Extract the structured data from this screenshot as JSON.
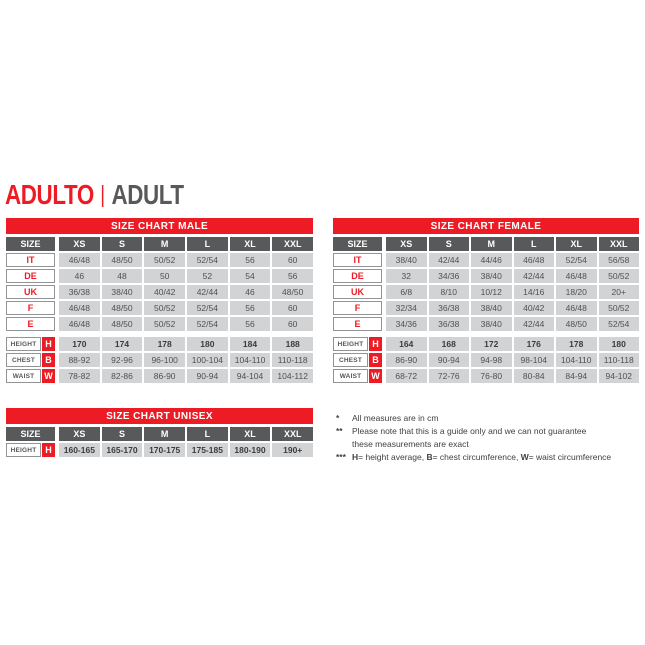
{
  "page": {
    "title_primary": "ADULTO",
    "title_separator": "|",
    "title_secondary": "ADULT"
  },
  "colors": {
    "red": "#ed1c24",
    "header_gray": "#58595b",
    "cell_gray": "#d1d3d4",
    "label_border": "#919396"
  },
  "tables": {
    "male": {
      "title": "SIZE CHART MALE",
      "size_header": "SIZE",
      "columns": [
        "XS",
        "S",
        "M",
        "L",
        "XL",
        "XXL"
      ],
      "size_rows": [
        {
          "label": "IT",
          "values": [
            "46/48",
            "48/50",
            "50/52",
            "52/54",
            "56",
            "60"
          ]
        },
        {
          "label": "DE",
          "values": [
            "46",
            "48",
            "50",
            "52",
            "54",
            "56"
          ]
        },
        {
          "label": "UK",
          "values": [
            "36/38",
            "38/40",
            "40/42",
            "42/44",
            "46",
            "48/50"
          ]
        },
        {
          "label": "F",
          "values": [
            "46/48",
            "48/50",
            "50/52",
            "52/54",
            "56",
            "60"
          ]
        },
        {
          "label": "E",
          "values": [
            "46/48",
            "48/50",
            "50/52",
            "52/54",
            "56",
            "60"
          ]
        }
      ],
      "measure_rows": [
        {
          "label": "HEIGHT",
          "code": "H",
          "bold": true,
          "values": [
            "170",
            "174",
            "178",
            "180",
            "184",
            "188"
          ]
        },
        {
          "label": "CHEST",
          "code": "B",
          "bold": false,
          "values": [
            "88-92",
            "92-96",
            "96-100",
            "100-104",
            "104-110",
            "110-118"
          ]
        },
        {
          "label": "WAIST",
          "code": "W",
          "bold": false,
          "values": [
            "78-82",
            "82-86",
            "86-90",
            "90-94",
            "94-104",
            "104-112"
          ]
        }
      ]
    },
    "female": {
      "title": "SIZE CHART FEMALE",
      "size_header": "SIZE",
      "columns": [
        "XS",
        "S",
        "M",
        "L",
        "XL",
        "XXL"
      ],
      "size_rows": [
        {
          "label": "IT",
          "values": [
            "38/40",
            "42/44",
            "44/46",
            "46/48",
            "52/54",
            "56/58"
          ]
        },
        {
          "label": "DE",
          "values": [
            "32",
            "34/36",
            "38/40",
            "42/44",
            "46/48",
            "50/52"
          ]
        },
        {
          "label": "UK",
          "values": [
            "6/8",
            "8/10",
            "10/12",
            "14/16",
            "18/20",
            "20+"
          ]
        },
        {
          "label": "F",
          "values": [
            "32/34",
            "36/38",
            "38/40",
            "40/42",
            "46/48",
            "50/52"
          ]
        },
        {
          "label": "E",
          "values": [
            "34/36",
            "36/38",
            "38/40",
            "42/44",
            "48/50",
            "52/54"
          ]
        }
      ],
      "measure_rows": [
        {
          "label": "HEIGHT",
          "code": "H",
          "bold": true,
          "values": [
            "164",
            "168",
            "172",
            "176",
            "178",
            "180"
          ]
        },
        {
          "label": "CHEST",
          "code": "B",
          "bold": false,
          "values": [
            "86-90",
            "90-94",
            "94-98",
            "98-104",
            "104-110",
            "110-118"
          ]
        },
        {
          "label": "WAIST",
          "code": "W",
          "bold": false,
          "values": [
            "68-72",
            "72-76",
            "76-80",
            "80-84",
            "84-94",
            "94-102"
          ]
        }
      ]
    },
    "unisex": {
      "title": "SIZE CHART UNISEX",
      "size_header": "SIZE",
      "columns": [
        "XS",
        "S",
        "M",
        "L",
        "XL",
        "XXL"
      ],
      "size_rows": [],
      "measure_rows": [
        {
          "label": "HEIGHT",
          "code": "H",
          "bold": true,
          "values": [
            "160-165",
            "165-170",
            "170-175",
            "175-185",
            "180-190",
            "190+"
          ]
        }
      ]
    }
  },
  "footnotes": [
    {
      "marker": "*",
      "segments": [
        {
          "text": "All measures are in cm"
        }
      ]
    },
    {
      "marker": "**",
      "segments": [
        {
          "text": "Please note that this is a guide only and we can not guarantee"
        },
        {
          "br": true
        },
        {
          "text": "these measurements are exact"
        }
      ]
    },
    {
      "marker": "***",
      "segments": [
        {
          "text": "H",
          "bold": true
        },
        {
          "text": "= height average, "
        },
        {
          "text": "B",
          "bold": true
        },
        {
          "text": "= chest circumference, "
        },
        {
          "text": "W",
          "bold": true
        },
        {
          "text": "= waist circumference"
        }
      ]
    }
  ]
}
